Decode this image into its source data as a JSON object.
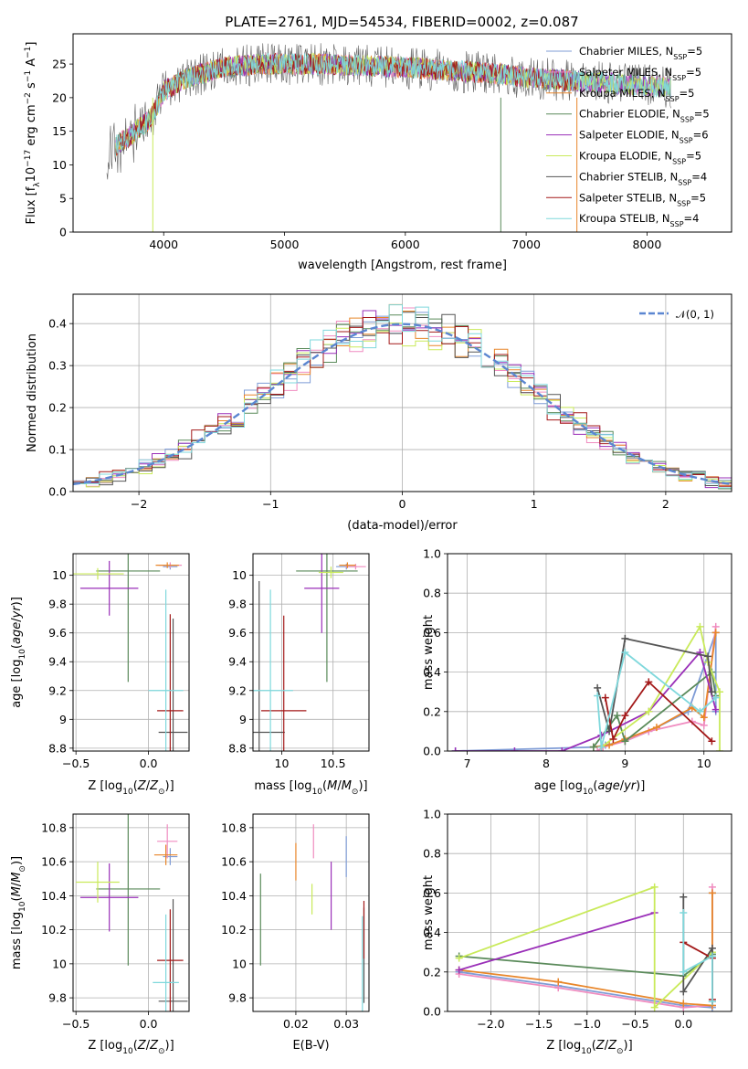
{
  "title": "PLATE=2761, MJD=54534, FIBERID=0002, z=0.087",
  "series_colors": [
    "#7f9cd6",
    "#f08cc0",
    "#e8862a",
    "#5a8a5a",
    "#9a2fb8",
    "#c9ea5a",
    "#555555",
    "#a31919",
    "#7fd8dc"
  ],
  "chart_data": [
    {
      "id": "spectrum",
      "type": "line",
      "xlabel": "wavelength [Angstrom, rest frame]",
      "ylabel": "Flux [f",
      "ylabel_parts": [
        "Flux [f",
        "λ",
        "10",
        "−17",
        " erg cm",
        "−2",
        " s",
        "−1",
        " A",
        "−1",
        "]"
      ],
      "xlim": [
        3250,
        8700
      ],
      "ylim": [
        0,
        29.5
      ],
      "xticks": [
        4000,
        5000,
        6000,
        7000,
        8000
      ],
      "yticks": [
        0,
        5,
        10,
        15,
        20,
        25
      ],
      "grid": false,
      "legend_position": "top-right",
      "legend": [
        {
          "pre": "Chabrier MILES, N",
          "sub": "SSP",
          "post": "=5"
        },
        {
          "pre": "Salpeter MILES, N",
          "sub": "SSP",
          "post": "=5"
        },
        {
          "pre": "Kroupa MILES, N",
          "sub": "SSP",
          "post": "=5"
        },
        {
          "pre": "Chabrier ELODIE, N",
          "sub": "SSP",
          "post": "=5"
        },
        {
          "pre": "Salpeter ELODIE, N",
          "sub": "SSP",
          "post": "=6"
        },
        {
          "pre": "Kroupa ELODIE, N",
          "sub": "SSP",
          "post": "=5"
        },
        {
          "pre": "Chabrier STELIB, N",
          "sub": "SSP",
          "post": "=4"
        },
        {
          "pre": "Salpeter STELIB, N",
          "sub": "SSP",
          "post": "=5"
        },
        {
          "pre": "Kroupa STELIB, N",
          "sub": "SSP",
          "post": "=4"
        }
      ],
      "continuum": {
        "x": [
          3530,
          3700,
          3900,
          4000,
          4200,
          4500,
          4800,
          5000,
          5300,
          5600,
          6000,
          6400,
          6800,
          7000,
          7400,
          7800,
          8200
        ],
        "y": [
          12,
          14,
          17,
          21,
          23,
          24.5,
          25,
          25,
          25,
          24.8,
          24.5,
          24,
          23.5,
          23,
          22.5,
          22,
          21.5
        ]
      }
    },
    {
      "id": "residuals",
      "type": "histogram",
      "xlabel": "(data-model)/error",
      "ylabel": "Normed distribution",
      "xlim": [
        -2.5,
        2.5
      ],
      "ylim": [
        0,
        0.47
      ],
      "xticks": [
        -2,
        -1,
        0,
        1,
        2
      ],
      "xtick_labels": [
        "−2",
        "−1",
        "0",
        "1",
        "2"
      ],
      "yticks": [
        0.0,
        0.1,
        0.2,
        0.3,
        0.4
      ],
      "grid": true,
      "legend_position": "top-right",
      "legend": [
        "𝒩(0, 1)"
      ],
      "bin_width": 0.1
    },
    {
      "id": "age-vs-z",
      "type": "scatter",
      "xlabel": "Z [log10(Z/Z⊙)]",
      "ylabel": "age  [log10(age/yr)]",
      "xlim": [
        -0.52,
        0.28
      ],
      "ylim": [
        8.78,
        10.15
      ],
      "xticks": [
        -0.5,
        0.0
      ],
      "xtick_labels": [
        "−0.5",
        "0.0"
      ],
      "yticks": [
        8.8,
        9.0,
        9.2,
        9.4,
        9.6,
        9.8,
        10.0
      ],
      "grid": true,
      "points": [
        {
          "x": 0.15,
          "y": 10.06,
          "xerr": 0.05,
          "yerr": 0.02
        },
        {
          "x": 0.15,
          "y": 10.07,
          "xerr": 0.08,
          "yerr": 0.02
        },
        {
          "x": 0.13,
          "y": 10.07,
          "xerr": 0.08,
          "yerr": 0.02
        },
        {
          "x": -0.14,
          "y": 10.03,
          "xerr": 0.22,
          "yerr": 0.77
        },
        {
          "x": -0.27,
          "y": 9.91,
          "xerr": 0.2,
          "yerr": 0.19
        },
        {
          "x": -0.35,
          "y": 10.01,
          "xerr": 0.18,
          "yerr": 0.04
        },
        {
          "x": 0.17,
          "y": 8.91,
          "xerr": 0.1,
          "yerr": 0.79
        },
        {
          "x": 0.15,
          "y": 9.06,
          "xerr": 0.09,
          "yerr": 0.67
        },
        {
          "x": 0.12,
          "y": 9.2,
          "xerr": 0.12,
          "yerr": 0.7
        }
      ]
    },
    {
      "id": "age-vs-mass",
      "type": "scatter",
      "xlabel": "mass [log10(M/M⊙)]",
      "ylabel": "",
      "xlim": [
        9.72,
        10.85
      ],
      "ylim": [
        8.78,
        10.15
      ],
      "xticks": [
        10.0,
        10.5
      ],
      "yticks": [
        8.8,
        9.0,
        9.2,
        9.4,
        9.6,
        9.8,
        10.0
      ],
      "grid": true,
      "points": [
        {
          "x": 10.63,
          "y": 10.06,
          "xerr": 0.1,
          "yerr": 0.02
        },
        {
          "x": 10.72,
          "y": 10.06,
          "xerr": 0.1,
          "yerr": 0.02
        },
        {
          "x": 10.64,
          "y": 10.07,
          "xerr": 0.08,
          "yerr": 0.02
        },
        {
          "x": 10.44,
          "y": 10.03,
          "xerr": 0.3,
          "yerr": 0.77
        },
        {
          "x": 10.39,
          "y": 9.91,
          "xerr": 0.17,
          "yerr": 0.31
        },
        {
          "x": 10.48,
          "y": 10.02,
          "xerr": 0.12,
          "yerr": 0.04
        },
        {
          "x": 9.78,
          "y": 8.91,
          "xerr": 0.25,
          "yerr": 1.05
        },
        {
          "x": 10.02,
          "y": 9.06,
          "xerr": 0.22,
          "yerr": 0.66
        },
        {
          "x": 9.89,
          "y": 9.2,
          "xerr": 0.22,
          "yerr": 0.7
        }
      ]
    },
    {
      "id": "weight-vs-age",
      "type": "line",
      "xlabel": "age  [log10(age/yr)]",
      "ylabel": "mass weight",
      "xlim": [
        6.75,
        10.35
      ],
      "ylim": [
        0,
        1.0
      ],
      "xticks": [
        7,
        8,
        9,
        10
      ],
      "yticks": [
        0.0,
        0.2,
        0.4,
        0.6,
        0.8,
        1.0
      ],
      "grid": true,
      "series": [
        {
          "x": [
            6.85,
            8.6,
            8.75,
            9.0,
            9.3,
            9.8,
            10.15,
            10.15
          ],
          "y": [
            0.0,
            0.02,
            0.03,
            0.05,
            0.1,
            0.2,
            0.6,
            0.2
          ]
        },
        {
          "x": [
            8.65,
            8.72,
            9.0,
            9.3,
            9.85,
            10.0,
            10.15
          ],
          "y": [
            0.0,
            0.02,
            0.05,
            0.1,
            0.15,
            0.13,
            0.63
          ]
        },
        {
          "x": [
            8.6,
            8.8,
            9.0,
            9.4,
            9.85,
            10.0,
            10.15
          ],
          "y": [
            0.02,
            0.03,
            0.06,
            0.12,
            0.22,
            0.17,
            0.6
          ]
        },
        {
          "x": [
            8.6,
            8.9,
            9.0,
            10.1,
            10.15
          ],
          "y": [
            0.02,
            0.18,
            0.05,
            0.4,
            0.28
          ]
        },
        {
          "x": [
            6.85,
            7.6,
            8.2,
            8.7,
            9.3,
            9.95,
            10.15
          ],
          "y": [
            0.0,
            0.0,
            0.0,
            0.08,
            0.2,
            0.5,
            0.21
          ]
        },
        {
          "x": [
            8.7,
            9.3,
            9.95,
            10.05,
            10.2,
            10.2
          ],
          "y": [
            0.02,
            0.2,
            0.63,
            0.45,
            0.3,
            0.0
          ]
        },
        {
          "x": [
            8.65,
            8.8,
            9.0,
            10.05,
            10.1
          ],
          "y": [
            0.32,
            0.1,
            0.57,
            0.48,
            0.3
          ]
        },
        {
          "x": [
            8.75,
            8.85,
            9.0,
            9.3,
            10.1
          ],
          "y": [
            0.27,
            0.06,
            0.18,
            0.35,
            0.05
          ]
        },
        {
          "x": [
            8.65,
            8.7,
            9.0,
            9.95,
            10.15
          ],
          "y": [
            0.28,
            0.02,
            0.5,
            0.2,
            0.27
          ]
        }
      ]
    },
    {
      "id": "mass-vs-z",
      "type": "scatter",
      "xlabel": "Z [log10(Z/Z⊙)]",
      "ylabel": "mass [log10(M/M⊙)]",
      "xlim": [
        -0.52,
        0.28
      ],
      "ylim": [
        9.72,
        10.88
      ],
      "xticks": [
        -0.5,
        0.0
      ],
      "xtick_labels": [
        "−0.5",
        "0.0"
      ],
      "yticks": [
        9.8,
        10.0,
        10.2,
        10.4,
        10.6,
        10.8
      ],
      "grid": true,
      "points": [
        {
          "x": 0.15,
          "y": 10.63,
          "xerr": 0.05,
          "yerr": 0.05
        },
        {
          "x": 0.13,
          "y": 10.72,
          "xerr": 0.07,
          "yerr": 0.1
        },
        {
          "x": 0.12,
          "y": 10.64,
          "xerr": 0.08,
          "yerr": 0.06
        },
        {
          "x": -0.14,
          "y": 10.44,
          "xerr": 0.22,
          "yerr": 0.45
        },
        {
          "x": -0.27,
          "y": 10.39,
          "xerr": 0.2,
          "yerr": 0.2
        },
        {
          "x": -0.35,
          "y": 10.48,
          "xerr": 0.15,
          "yerr": 0.12
        },
        {
          "x": 0.17,
          "y": 9.78,
          "xerr": 0.1,
          "yerr": 0.6
        },
        {
          "x": 0.15,
          "y": 10.02,
          "xerr": 0.09,
          "yerr": 0.3
        },
        {
          "x": 0.12,
          "y": 9.89,
          "xerr": 0.09,
          "yerr": 0.4
        }
      ]
    },
    {
      "id": "mass-vs-ebv",
      "type": "scatter",
      "xlabel": "E(B-V)",
      "ylabel": "",
      "xlim": [
        0.0115,
        0.0345
      ],
      "ylim": [
        9.72,
        10.88
      ],
      "xticks": [
        0.01,
        0.02,
        0.03
      ],
      "yticks": [
        9.8,
        10.0,
        10.2,
        10.4,
        10.6,
        10.8
      ],
      "grid": true,
      "points": [
        {
          "x": 0.03,
          "y": 10.63,
          "xerr": 0,
          "yerr": 0.12
        },
        {
          "x": 0.0235,
          "y": 10.72,
          "xerr": 0,
          "yerr": 0.1
        },
        {
          "x": 0.02,
          "y": 10.6,
          "xerr": 0,
          "yerr": 0.11
        },
        {
          "x": 0.013,
          "y": 10.26,
          "xerr": 0,
          "yerr": 0.27
        },
        {
          "x": 0.027,
          "y": 10.4,
          "xerr": 0,
          "yerr": 0.2
        },
        {
          "x": 0.0232,
          "y": 10.38,
          "xerr": 0,
          "yerr": 0.09
        },
        {
          "x": 0.0335,
          "y": 10.05,
          "xerr": 0,
          "yerr": 0.28
        },
        {
          "x": 0.0335,
          "y": 10.2,
          "xerr": 0,
          "yerr": 0.17
        },
        {
          "x": 0.0332,
          "y": 9.98,
          "xerr": 0,
          "yerr": 0.3
        }
      ]
    },
    {
      "id": "weight-vs-z",
      "type": "line",
      "xlabel": "Z [log10(Z/Z⊙)]",
      "ylabel": "mass weight",
      "xlim": [
        -2.45,
        0.5
      ],
      "ylim": [
        0,
        1.0
      ],
      "xticks": [
        -2.0,
        -1.5,
        -1.0,
        -0.5,
        0.0
      ],
      "xtick_labels": [
        "−2.0",
        "−1.5",
        "−1.0",
        "−0.5",
        "0.0"
      ],
      "yticks": [
        0.0,
        0.2,
        0.4,
        0.6,
        0.8,
        1.0
      ],
      "grid": true,
      "series": [
        {
          "x": [
            -2.33,
            -1.3,
            0.0,
            0.3,
            0.3
          ],
          "y": [
            0.2,
            0.13,
            0.03,
            0.02,
            0.6
          ]
        },
        {
          "x": [
            -2.33,
            -1.3,
            0.0,
            0.3,
            0.3
          ],
          "y": [
            0.19,
            0.12,
            0.02,
            0.03,
            0.63
          ]
        },
        {
          "x": [
            -2.33,
            -1.3,
            0.0,
            0.3,
            0.3
          ],
          "y": [
            0.21,
            0.15,
            0.04,
            0.03,
            0.6
          ]
        },
        {
          "x": [
            -2.33,
            0.0,
            0.3
          ],
          "y": [
            0.28,
            0.18,
            0.29
          ]
        },
        {
          "x": [
            -2.33,
            -0.3
          ],
          "y": [
            0.21,
            0.5
          ]
        },
        {
          "x": [
            -2.33,
            -0.3,
            -0.3,
            0.3
          ],
          "y": [
            0.27,
            0.63,
            0.02,
            0.3
          ]
        },
        {
          "x": [
            0.0,
            0.0,
            0.3,
            0.3
          ],
          "y": [
            0.58,
            0.1,
            0.32,
            0.05
          ]
        },
        {
          "x": [
            0.0,
            0.3,
            0.3
          ],
          "y": [
            0.35,
            0.27,
            0.06
          ]
        },
        {
          "x": [
            0.0,
            0.0,
            0.3,
            0.3
          ],
          "y": [
            0.5,
            0.2,
            0.28,
            0.05
          ]
        }
      ]
    }
  ]
}
